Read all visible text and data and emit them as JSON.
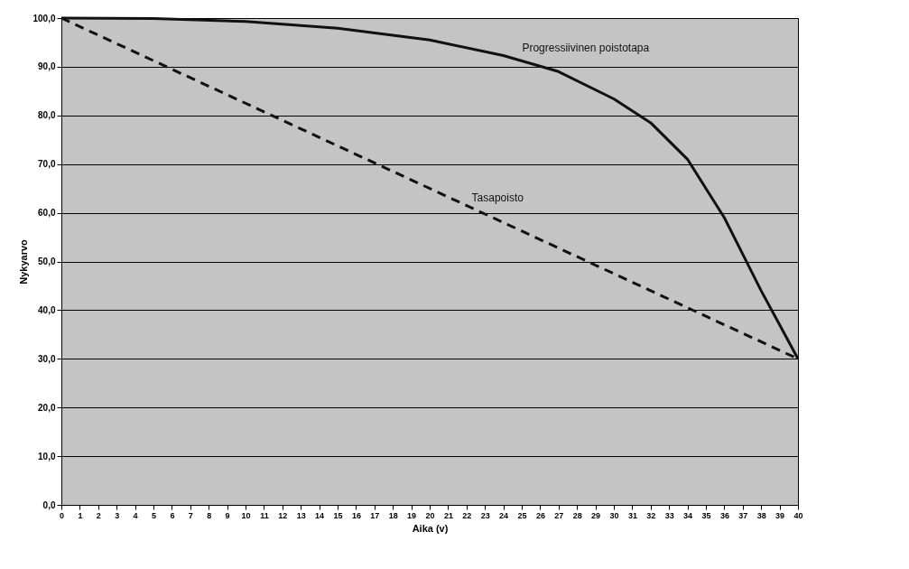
{
  "chart_data": {
    "type": "line",
    "xlabel": "Aika (v)",
    "ylabel": "Nykyarvo",
    "xlim": [
      0,
      40
    ],
    "xticks": [
      0,
      1,
      2,
      3,
      4,
      5,
      6,
      7,
      8,
      9,
      10,
      11,
      12,
      13,
      14,
      15,
      16,
      17,
      18,
      19,
      20,
      21,
      22,
      23,
      24,
      25,
      26,
      27,
      28,
      29,
      30,
      31,
      32,
      33,
      34,
      35,
      36,
      37,
      38,
      39,
      40
    ],
    "ylim": [
      0,
      100
    ],
    "yticks": [
      {
        "value": 0,
        "label": "0,0"
      },
      {
        "value": 10,
        "label": "10,0"
      },
      {
        "value": 20,
        "label": "20,0"
      },
      {
        "value": 30,
        "label": "30,0"
      },
      {
        "value": 40,
        "label": "40,0"
      },
      {
        "value": 50,
        "label": "50,0"
      },
      {
        "value": 60,
        "label": "60,0"
      },
      {
        "value": 70,
        "label": "70,0"
      },
      {
        "value": 80,
        "label": "80,0"
      },
      {
        "value": 90,
        "label": "90,0"
      },
      {
        "value": 100,
        "label": "100,0"
      }
    ],
    "grid": "y",
    "marker": "none",
    "series": [
      {
        "name": "Progressiivinen poistotapa",
        "color": "#111111",
        "line_style": "solid",
        "x": [
          0,
          5,
          10,
          15,
          20,
          24,
          27,
          30,
          32,
          34,
          36,
          37,
          38,
          39,
          40
        ],
        "values": [
          100,
          99.9,
          99.3,
          97.9,
          95.5,
          92.3,
          89,
          83.4,
          78.5,
          71,
          59,
          51.5,
          44,
          37,
          30
        ]
      },
      {
        "name": "Tasapoisto",
        "color": "#111111",
        "line_style": "dashed",
        "x": [
          0,
          40
        ],
        "values": [
          100,
          30
        ]
      }
    ]
  }
}
